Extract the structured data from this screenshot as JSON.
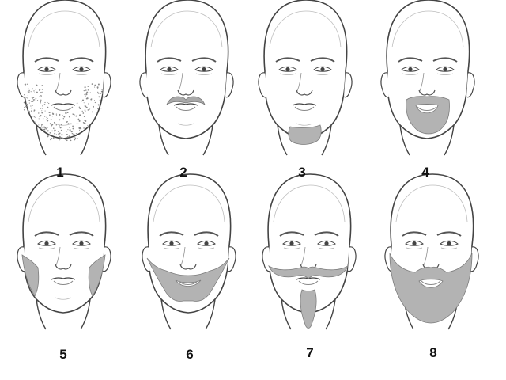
{
  "faces": [
    {
      "label": "1",
      "style": "stubble"
    },
    {
      "label": "2",
      "style": "mustache"
    },
    {
      "label": "3",
      "style": "chin-patch"
    },
    {
      "label": "4",
      "style": "circle-beard"
    },
    {
      "label": "5",
      "style": "sideburns"
    },
    {
      "label": "6",
      "style": "chin-strap-with-mustache"
    },
    {
      "label": "7",
      "style": "handlebar-mustache-with-goatee"
    },
    {
      "label": "8",
      "style": "full-beard"
    }
  ],
  "colors": {
    "line": "#444444",
    "line_light": "#9a9a9a",
    "beard_fill": "#b3b3b3",
    "beard_stroke": "#7d7d7d",
    "stubble": "#8a8a8a",
    "label": "#111111"
  }
}
